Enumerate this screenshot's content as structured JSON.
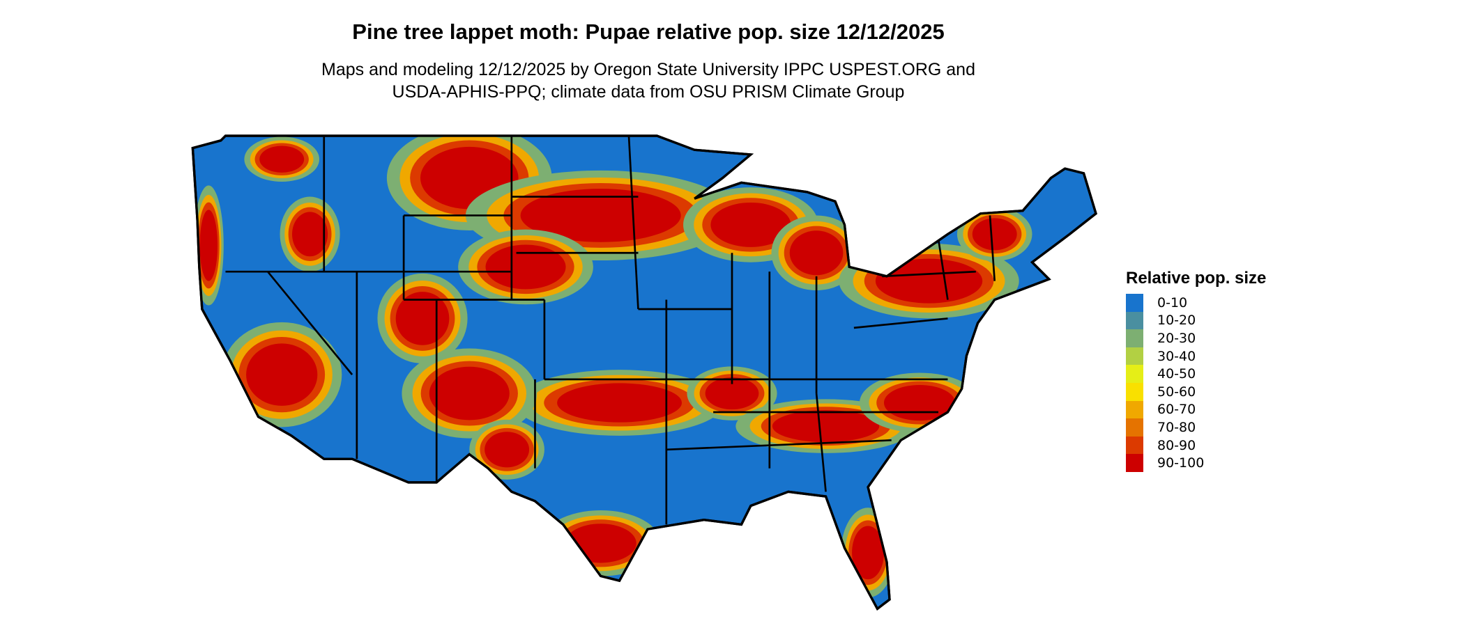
{
  "title": "Pine tree lappet moth: Pupae relative pop. size 12/12/2025",
  "subtitle_lines": [
    "Maps and modeling 12/12/2025 by Oregon State University IPPC USPEST.ORG and",
    "USDA-APHIS-PPQ; climate data from OSU PRISM Climate Group"
  ],
  "map": {
    "region": "Contiguous United States",
    "boundaries": "state",
    "base_color": "#1874CD"
  },
  "legend": {
    "title": "Relative pop. size",
    "items": [
      {
        "label": "0-10",
        "color": "#1874CD"
      },
      {
        "label": "10-20",
        "color": "#4A8FA0"
      },
      {
        "label": "20-30",
        "color": "#7DAF72"
      },
      {
        "label": "30-40",
        "color": "#B2D043"
      },
      {
        "label": "40-50",
        "color": "#E5EE17"
      },
      {
        "label": "50-60",
        "color": "#F9E000"
      },
      {
        "label": "60-70",
        "color": "#F0A800"
      },
      {
        "label": "70-80",
        "color": "#E57300"
      },
      {
        "label": "80-90",
        "color": "#DC3A00"
      },
      {
        "label": "90-100",
        "color": "#CD0000"
      }
    ]
  }
}
